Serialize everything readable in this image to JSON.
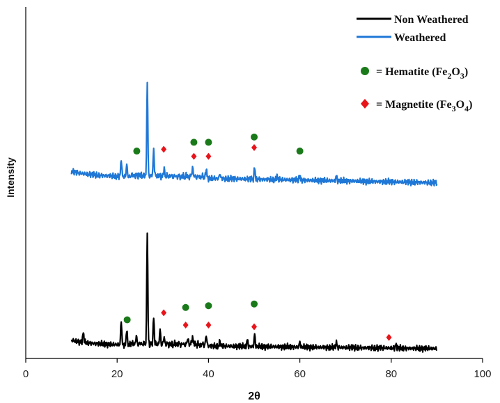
{
  "chart_data": {
    "type": "line",
    "xlabel": "2θ",
    "ylabel": "Intensity",
    "xlim": [
      0,
      100
    ],
    "xticks": [
      0,
      20,
      40,
      60,
      80,
      100
    ],
    "ylim": [
      0,
      100
    ],
    "grid": false,
    "legend_placement": "top-right",
    "series": [
      {
        "name": "Non Weathered",
        "color": "#000000",
        "baseline": 4,
        "drift": -1.2,
        "peaks": [
          [
            12.6,
            3
          ],
          [
            20.9,
            7
          ],
          [
            22.1,
            4.5
          ],
          [
            24.2,
            2
          ],
          [
            26.6,
            32
          ],
          [
            28.0,
            8
          ],
          [
            29.4,
            4
          ],
          [
            30.3,
            2
          ],
          [
            35.5,
            2
          ],
          [
            36.5,
            2.5
          ],
          [
            39.5,
            2.5
          ],
          [
            42.5,
            1.5
          ],
          [
            48.5,
            2
          ],
          [
            50.1,
            3.5
          ],
          [
            60.0,
            1.5
          ],
          [
            68.0,
            1.5
          ],
          [
            81.0,
            1
          ]
        ]
      },
      {
        "name": "Weathered",
        "color": "#1f77d6",
        "baseline": 52,
        "drift": -2,
        "peaks": [
          [
            20.9,
            5
          ],
          [
            22.1,
            3.5
          ],
          [
            26.6,
            27
          ],
          [
            28.0,
            8
          ],
          [
            30.3,
            2
          ],
          [
            36.5,
            3
          ],
          [
            39.5,
            2
          ],
          [
            42.5,
            1.5
          ],
          [
            50.1,
            3.5
          ],
          [
            55.0,
            1
          ],
          [
            60.0,
            1.5
          ],
          [
            68.0,
            1.5
          ]
        ]
      }
    ],
    "markers": [
      {
        "label": "= Hematite (Fe2O3)",
        "formula_base": "= Hematite (Fe",
        "sub1": "2",
        "mid": "O",
        "sub2": "3",
        "end": ")",
        "shape": "circle",
        "color": "#1a7a1a",
        "points": [
          [
            24.3,
            59
          ],
          [
            36.8,
            61.5
          ],
          [
            40.0,
            61.5
          ],
          [
            50.0,
            63
          ],
          [
            60.0,
            59
          ],
          [
            22.2,
            11
          ],
          [
            35.0,
            14.5
          ],
          [
            40.0,
            15
          ],
          [
            50.0,
            15.5
          ]
        ]
      },
      {
        "label": "= Magnetite (Fe3O4)",
        "formula_base": "= Magnetite (Fe",
        "sub1": "3",
        "mid": "O",
        "sub2": "4",
        "end": ")",
        "shape": "diamond",
        "color": "#e8141a",
        "points": [
          [
            30.2,
            59.5
          ],
          [
            36.8,
            57.5
          ],
          [
            40.0,
            57.5
          ],
          [
            50.0,
            60
          ],
          [
            30.2,
            13
          ],
          [
            35.0,
            9.5
          ],
          [
            40.0,
            9.5
          ],
          [
            50.0,
            9
          ],
          [
            79.5,
            6
          ]
        ]
      }
    ]
  }
}
